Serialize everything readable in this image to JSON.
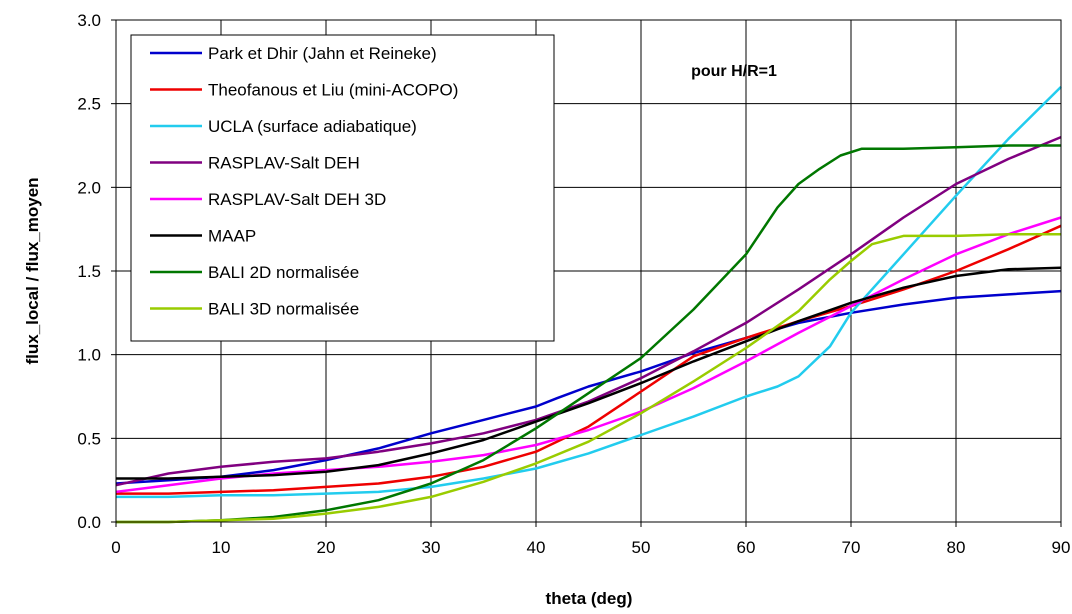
{
  "chart_data": {
    "type": "line",
    "xlabel": "theta (deg)",
    "ylabel": "flux_local / flux_moyen",
    "annotation": "pour H/R=1",
    "xlim": [
      0,
      90
    ],
    "ylim": [
      0,
      3.0
    ],
    "xticks": [
      "0",
      "10",
      "20",
      "30",
      "40",
      "50",
      "60",
      "70",
      "80",
      "90"
    ],
    "yticks": [
      "0.0",
      "0.5",
      "1.0",
      "1.5",
      "2.0",
      "2.5",
      "3.0"
    ],
    "grid": true,
    "legend_position": "top-left",
    "series": [
      {
        "name": "Park et Dhir (Jahn et Reineke)",
        "color": "#0000cc",
        "points": [
          [
            0,
            0.23
          ],
          [
            5,
            0.25
          ],
          [
            10,
            0.27
          ],
          [
            15,
            0.31
          ],
          [
            20,
            0.37
          ],
          [
            25,
            0.44
          ],
          [
            30,
            0.53
          ],
          [
            35,
            0.61
          ],
          [
            40,
            0.69
          ],
          [
            42,
            0.74
          ],
          [
            45,
            0.81
          ],
          [
            50,
            0.9
          ],
          [
            55,
            1.01
          ],
          [
            60,
            1.1
          ],
          [
            65,
            1.19
          ],
          [
            70,
            1.25
          ],
          [
            75,
            1.3
          ],
          [
            80,
            1.34
          ],
          [
            85,
            1.36
          ],
          [
            90,
            1.38
          ]
        ]
      },
      {
        "name": "Theofanous et Liu (mini-ACOPO)",
        "color": "#ee0000",
        "points": [
          [
            0,
            0.17
          ],
          [
            5,
            0.17
          ],
          [
            10,
            0.18
          ],
          [
            15,
            0.19
          ],
          [
            20,
            0.21
          ],
          [
            25,
            0.23
          ],
          [
            30,
            0.27
          ],
          [
            35,
            0.33
          ],
          [
            40,
            0.42
          ],
          [
            45,
            0.57
          ],
          [
            50,
            0.78
          ],
          [
            55,
            0.99
          ],
          [
            60,
            1.1
          ],
          [
            65,
            1.2
          ],
          [
            70,
            1.29
          ],
          [
            75,
            1.39
          ],
          [
            80,
            1.5
          ],
          [
            85,
            1.63
          ],
          [
            90,
            1.77
          ]
        ]
      },
      {
        "name": "UCLA (surface adiabatique)",
        "color": "#22ccee",
        "points": [
          [
            0,
            0.15
          ],
          [
            5,
            0.15
          ],
          [
            10,
            0.16
          ],
          [
            15,
            0.16
          ],
          [
            20,
            0.17
          ],
          [
            25,
            0.18
          ],
          [
            30,
            0.21
          ],
          [
            35,
            0.26
          ],
          [
            40,
            0.32
          ],
          [
            45,
            0.41
          ],
          [
            50,
            0.52
          ],
          [
            55,
            0.63
          ],
          [
            60,
            0.75
          ],
          [
            63,
            0.81
          ],
          [
            65,
            0.87
          ],
          [
            68,
            1.05
          ],
          [
            70,
            1.25
          ],
          [
            75,
            1.6
          ],
          [
            80,
            1.95
          ],
          [
            85,
            2.29
          ],
          [
            90,
            2.6
          ]
        ]
      },
      {
        "name": "RASPLAV-Salt DEH",
        "color": "#800080",
        "points": [
          [
            0,
            0.22
          ],
          [
            5,
            0.29
          ],
          [
            10,
            0.33
          ],
          [
            15,
            0.36
          ],
          [
            20,
            0.38
          ],
          [
            25,
            0.42
          ],
          [
            30,
            0.47
          ],
          [
            35,
            0.53
          ],
          [
            40,
            0.61
          ],
          [
            45,
            0.72
          ],
          [
            50,
            0.86
          ],
          [
            55,
            1.02
          ],
          [
            60,
            1.19
          ],
          [
            65,
            1.39
          ],
          [
            70,
            1.6
          ],
          [
            75,
            1.82
          ],
          [
            80,
            2.02
          ],
          [
            85,
            2.17
          ],
          [
            90,
            2.3
          ]
        ]
      },
      {
        "name": "RASPLAV-Salt DEH 3D",
        "color": "#ff00ff",
        "points": [
          [
            0,
            0.18
          ],
          [
            5,
            0.22
          ],
          [
            10,
            0.26
          ],
          [
            15,
            0.29
          ],
          [
            20,
            0.31
          ],
          [
            25,
            0.33
          ],
          [
            30,
            0.36
          ],
          [
            35,
            0.4
          ],
          [
            40,
            0.46
          ],
          [
            45,
            0.55
          ],
          [
            50,
            0.66
          ],
          [
            55,
            0.8
          ],
          [
            60,
            0.96
          ],
          [
            65,
            1.13
          ],
          [
            70,
            1.29
          ],
          [
            75,
            1.45
          ],
          [
            80,
            1.6
          ],
          [
            85,
            1.72
          ],
          [
            90,
            1.82
          ]
        ]
      },
      {
        "name": "MAAP",
        "color": "#000000",
        "points": [
          [
            0,
            0.26
          ],
          [
            5,
            0.26
          ],
          [
            10,
            0.27
          ],
          [
            15,
            0.28
          ],
          [
            20,
            0.3
          ],
          [
            25,
            0.34
          ],
          [
            30,
            0.41
          ],
          [
            35,
            0.49
          ],
          [
            40,
            0.6
          ],
          [
            45,
            0.71
          ],
          [
            50,
            0.83
          ],
          [
            55,
            0.96
          ],
          [
            60,
            1.08
          ],
          [
            65,
            1.2
          ],
          [
            70,
            1.31
          ],
          [
            75,
            1.4
          ],
          [
            80,
            1.47
          ],
          [
            85,
            1.51
          ],
          [
            90,
            1.52
          ]
        ]
      },
      {
        "name": "BALI 2D normalisée",
        "color": "#007700",
        "points": [
          [
            0,
            0.0
          ],
          [
            5,
            0.0
          ],
          [
            10,
            0.01
          ],
          [
            15,
            0.03
          ],
          [
            20,
            0.07
          ],
          [
            25,
            0.13
          ],
          [
            30,
            0.23
          ],
          [
            35,
            0.37
          ],
          [
            40,
            0.56
          ],
          [
            45,
            0.77
          ],
          [
            50,
            0.98
          ],
          [
            55,
            1.27
          ],
          [
            60,
            1.6
          ],
          [
            63,
            1.88
          ],
          [
            65,
            2.02
          ],
          [
            67,
            2.11
          ],
          [
            69,
            2.19
          ],
          [
            71,
            2.23
          ],
          [
            75,
            2.23
          ],
          [
            80,
            2.24
          ],
          [
            85,
            2.25
          ],
          [
            90,
            2.25
          ]
        ]
      },
      {
        "name": "BALI 3D normalisée",
        "color": "#99cc00",
        "points": [
          [
            0,
            0.0
          ],
          [
            5,
            0.0
          ],
          [
            10,
            0.01
          ],
          [
            15,
            0.02
          ],
          [
            20,
            0.05
          ],
          [
            25,
            0.09
          ],
          [
            30,
            0.15
          ],
          [
            35,
            0.24
          ],
          [
            40,
            0.35
          ],
          [
            45,
            0.48
          ],
          [
            50,
            0.65
          ],
          [
            55,
            0.84
          ],
          [
            60,
            1.04
          ],
          [
            65,
            1.26
          ],
          [
            68,
            1.45
          ],
          [
            70,
            1.56
          ],
          [
            72,
            1.66
          ],
          [
            75,
            1.71
          ],
          [
            80,
            1.71
          ],
          [
            85,
            1.72
          ],
          [
            90,
            1.72
          ]
        ]
      }
    ]
  }
}
